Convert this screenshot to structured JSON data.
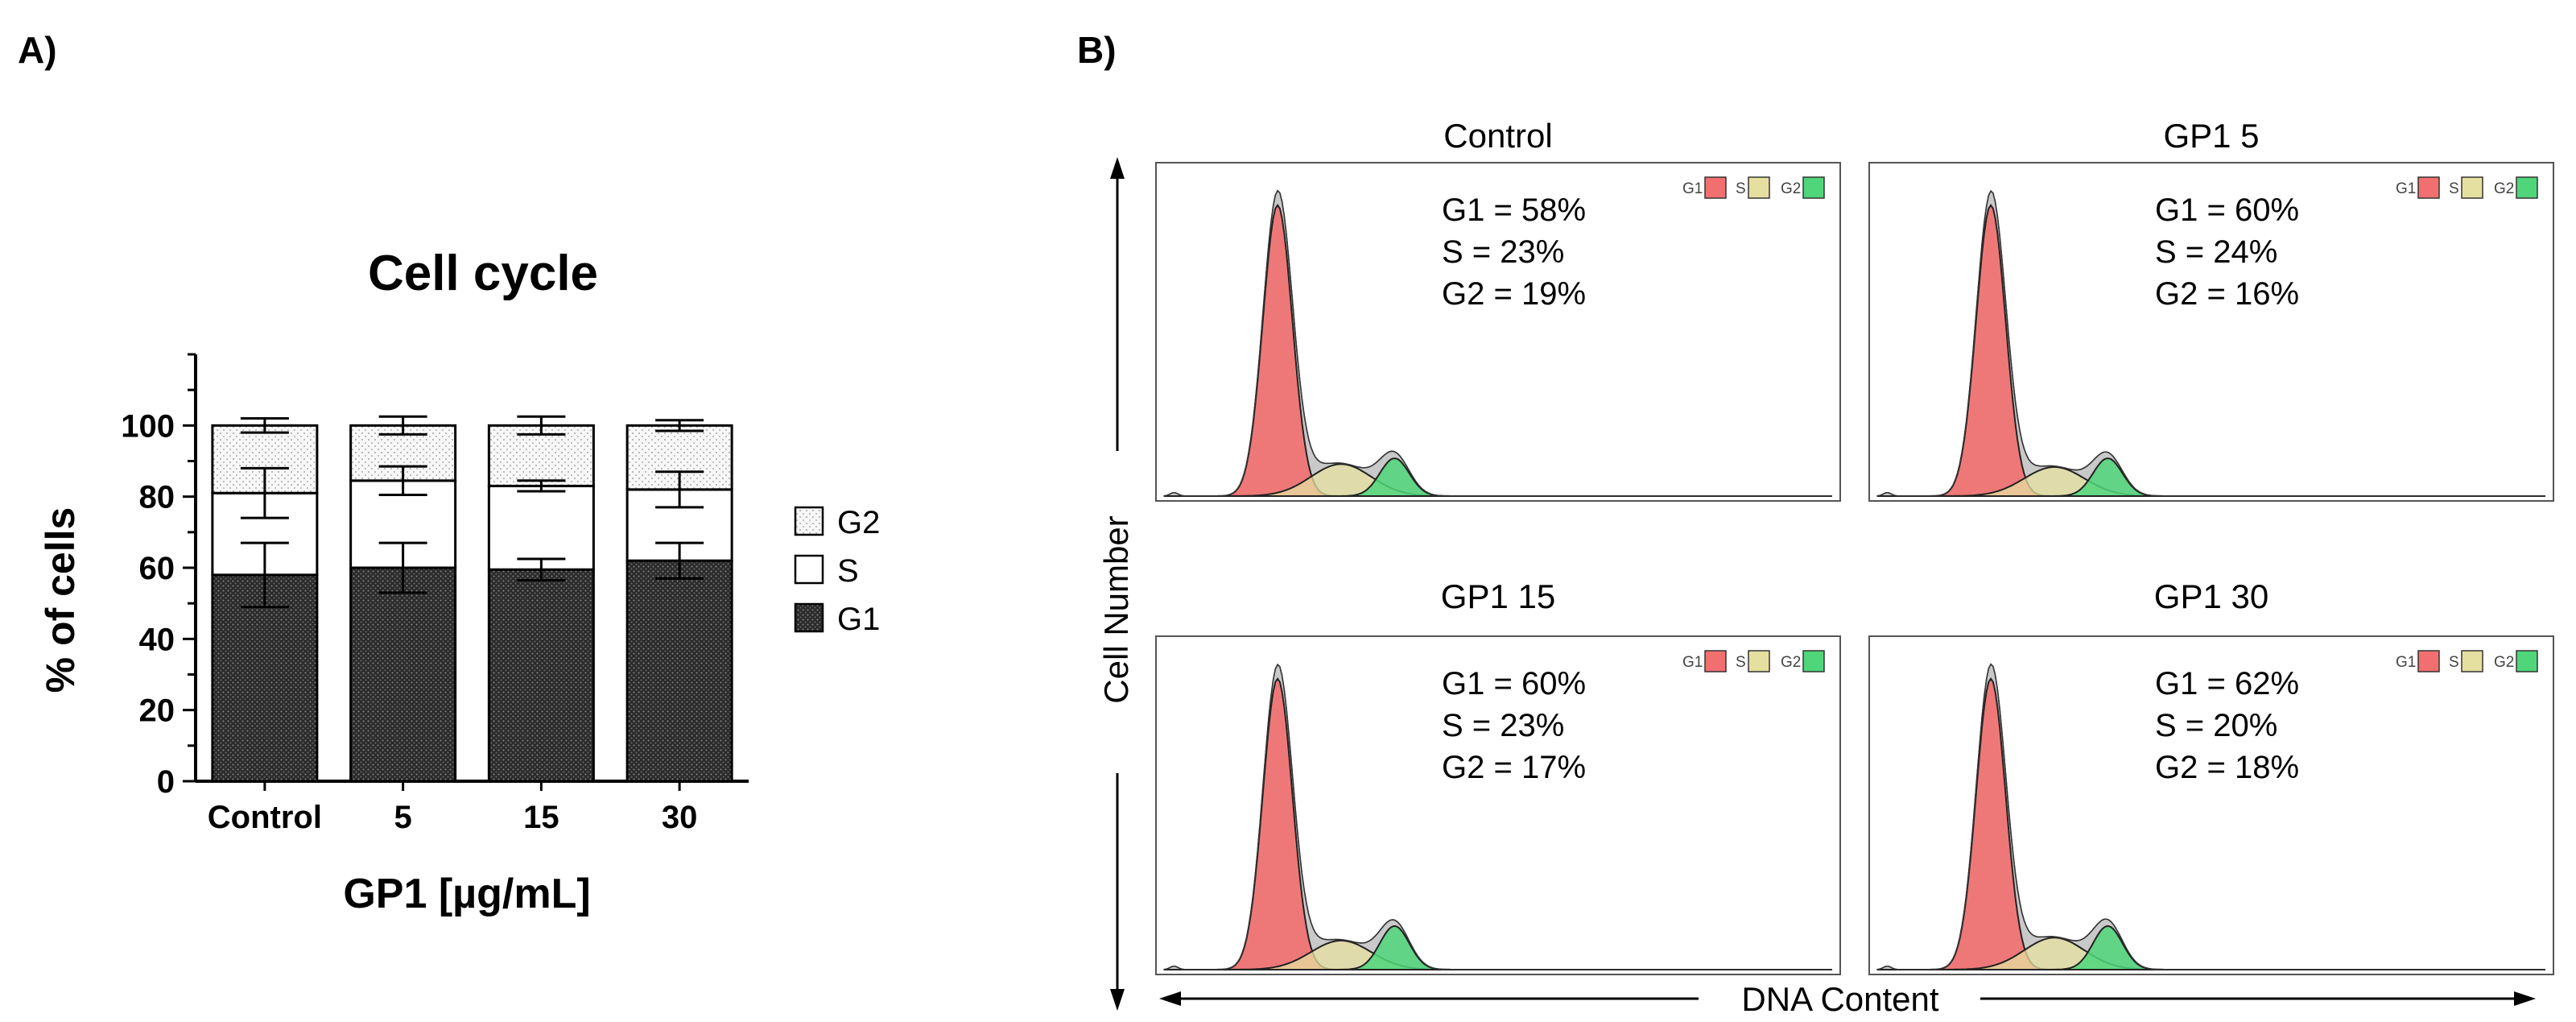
{
  "panel_a": {
    "label": "A)",
    "legend": [
      "G2",
      "S",
      "G1"
    ]
  },
  "panel_b": {
    "label": "B)",
    "y_axis_label": "Cell Number",
    "x_axis_label": "DNA Content",
    "legend_keys": [
      "G1",
      "S",
      "G2"
    ]
  },
  "colors": {
    "g1_fill": "#f26f6f",
    "s_fill": "#e6e0a0",
    "g2_fill": "#4fd67a",
    "raw_fill": "#c9c9c9"
  },
  "chart_data": [
    {
      "type": "bar",
      "stacked": true,
      "title": "Cell cycle",
      "xlabel": "GP1 [µg/mL]",
      "ylabel": "% of cells",
      "categories": [
        "Control",
        "5",
        "15",
        "30"
      ],
      "ylim": [
        0,
        120
      ],
      "yticks": [
        0,
        20,
        40,
        60,
        80,
        100
      ],
      "series": [
        {
          "name": "G1",
          "values": [
            58,
            60,
            59.5,
            62
          ],
          "errors": [
            9,
            7,
            3,
            5
          ]
        },
        {
          "name": "S",
          "values": [
            23,
            24.5,
            23.5,
            20
          ],
          "errors": [
            7,
            4,
            1.5,
            5
          ]
        },
        {
          "name": "G2",
          "values": [
            19,
            15.5,
            17,
            18
          ],
          "errors": [
            2,
            2.5,
            2.5,
            1.5
          ]
        }
      ]
    },
    {
      "type": "area",
      "description": "DNA content histograms",
      "panels": [
        {
          "title": "Control",
          "stats": [
            "G1 = 58%",
            "S = 23%",
            "G2 = 19%"
          ],
          "g1_peak": 1,
          "s_peak": 0.11,
          "g2_peak": 0.13
        },
        {
          "title": "GP1 5",
          "stats": [
            "G1 = 60%",
            "S = 24%",
            "G2 = 16%"
          ],
          "g1_peak": 1,
          "s_peak": 0.1,
          "g2_peak": 0.13
        },
        {
          "title": "GP1 15",
          "stats": [
            "G1 = 60%",
            "S = 23%",
            "G2 = 17%"
          ],
          "g1_peak": 1,
          "s_peak": 0.1,
          "g2_peak": 0.15
        },
        {
          "title": "GP1 30",
          "stats": [
            "G1 = 62%",
            "S = 20%",
            "G2 = 18%"
          ],
          "g1_peak": 1,
          "s_peak": 0.11,
          "g2_peak": 0.15
        }
      ]
    }
  ]
}
